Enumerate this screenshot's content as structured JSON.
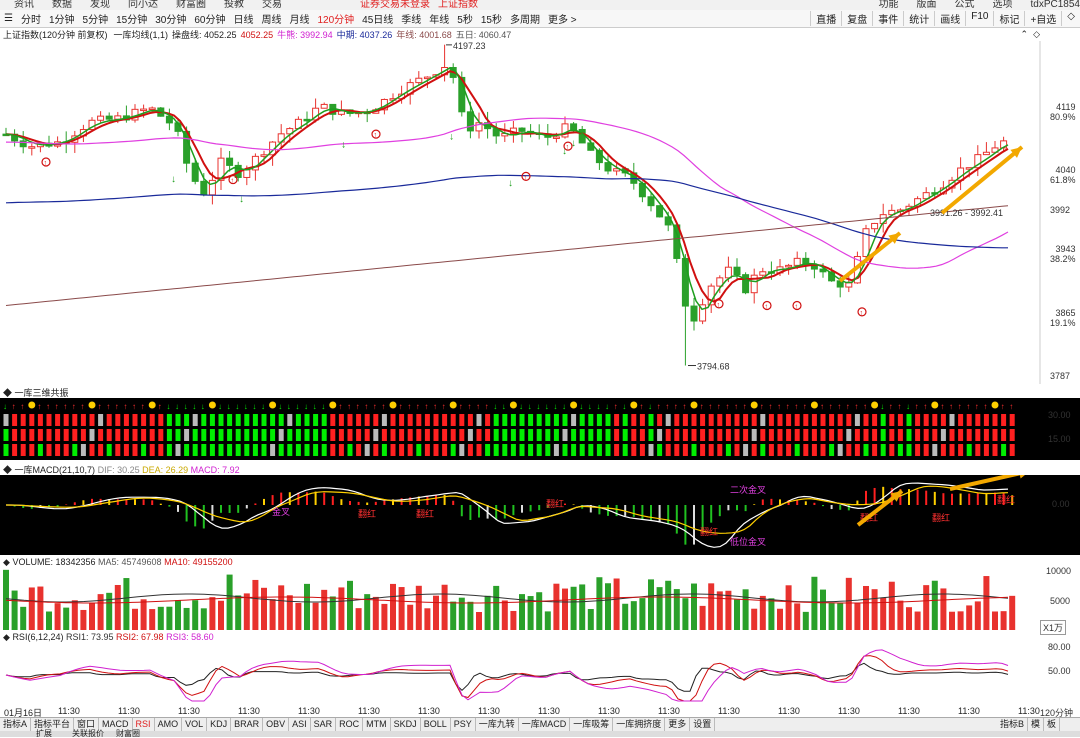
{
  "menu": [
    "资讯",
    "数据",
    "发现",
    "同小达",
    "财富圈",
    "投教",
    "交易"
  ],
  "menu_notice": [
    "证券交易未登录",
    "上证指数"
  ],
  "menu_right": [
    "功能",
    "版面",
    "公式",
    "选项"
  ],
  "account": "tdxPC1854",
  "periods": [
    {
      "label": "分时",
      "active": false
    },
    {
      "label": "1分钟",
      "active": false
    },
    {
      "label": "5分钟",
      "active": false
    },
    {
      "label": "15分钟",
      "active": false
    },
    {
      "label": "30分钟",
      "active": false
    },
    {
      "label": "60分钟",
      "active": false
    },
    {
      "label": "日线",
      "active": false
    },
    {
      "label": "周线",
      "active": false
    },
    {
      "label": "月线",
      "active": false
    },
    {
      "label": "120分钟",
      "active": true
    },
    {
      "label": "45日线",
      "active": false
    },
    {
      "label": "季线",
      "active": false
    },
    {
      "label": "年线",
      "active": false
    },
    {
      "label": "5秒",
      "active": false
    },
    {
      "label": "15秒",
      "active": false
    },
    {
      "label": "多周期",
      "active": false
    },
    {
      "label": "更多 >",
      "active": false
    }
  ],
  "right_buttons": [
    "直播",
    "复盘",
    "事件",
    "统计",
    "画线",
    "F10",
    "标记",
    "+自选",
    "◇"
  ],
  "info": {
    "title": "上证指数(120分钟 前复权)",
    "indicator": "一库均线(1,1)",
    "cpx": "操盘线: 4052.25",
    "short": "4052.25",
    "bull": "牛熊: 3992.94",
    "mid": "中期: 4037.26",
    "year": "年线: 4001.68",
    "five": "五日: 4060.47"
  },
  "price_axis": [
    {
      "v": "4119",
      "pct": "80.9%",
      "y": 107
    },
    {
      "v": "4040",
      "pct": "61.8%",
      "y": 170
    },
    {
      "v": "3992",
      "pct": "",
      "y": 210
    },
    {
      "v": "3943",
      "pct": "38.2%",
      "y": 249
    },
    {
      "v": "3865",
      "pct": "19.1%",
      "y": 313
    },
    {
      "v": "3787",
      "pct": "",
      "y": 376
    }
  ],
  "annotations": {
    "high": "4197.23",
    "low": "3794.68",
    "range": "3991.26 - 3992.41"
  },
  "p2": {
    "title": "一库三维共振",
    "ticks": [
      "30.00",
      "15.00"
    ]
  },
  "p3": {
    "title": "一库MACD(21,10,7)",
    "dif": "DIF: 30.25",
    "dea": "DEA: 26.29",
    "macd": "MACD: 7.92",
    "tick": "0.00",
    "labels": [
      "二次金叉",
      "翻红",
      "金叉",
      "翻红",
      "翻红",
      "翻红",
      "低位金叉",
      "翻红",
      "翻红",
      "翻红"
    ]
  },
  "p4": {
    "title": "VOLUME: 18342356",
    "ma5": "MA5: 45749608",
    "ma10": "MA10: 49155200",
    "ticks": [
      "10000",
      "5000"
    ],
    "unit": "X1万"
  },
  "p5": {
    "title": "RSI(6,12,24)",
    "r1": "RSI1: 73.95",
    "r2": "RSI2: 67.98",
    "r3": "RSI3: 58.60",
    "ticks": [
      "80.00",
      "50.00"
    ]
  },
  "time_axis": [
    "01月16日",
    "11:30",
    "11:30",
    "11:30",
    "11:30",
    "11:30",
    "11:30",
    "11:30",
    "11:30",
    "11:30",
    "11:30",
    "11:30",
    "11:30",
    "11:30",
    "11:30",
    "11:30",
    "11:30",
    "11:30"
  ],
  "tabs": [
    {
      "label": "指标A",
      "active": false
    },
    {
      "label": "指标平台",
      "active": false
    },
    {
      "label": "窗口",
      "active": false
    },
    {
      "label": "MACD",
      "active": false
    },
    {
      "label": "RSI",
      "active": true
    },
    {
      "label": "AMO",
      "active": false
    },
    {
      "label": "VOL",
      "active": false
    },
    {
      "label": "KDJ",
      "active": false
    },
    {
      "label": "BRAR",
      "active": false
    },
    {
      "label": "OBV",
      "active": false
    },
    {
      "label": "ASI",
      "active": false
    },
    {
      "label": "SAR",
      "active": false
    },
    {
      "label": "ROC",
      "active": false
    },
    {
      "label": "MTM",
      "active": false
    },
    {
      "label": "SKDJ",
      "active": false
    },
    {
      "label": "BOLL",
      "active": false
    },
    {
      "label": "PSY",
      "active": false
    },
    {
      "label": "一库九转",
      "active": false
    },
    {
      "label": "一库MACD",
      "active": false
    },
    {
      "label": "一库吸筹",
      "active": false
    },
    {
      "label": "一库拥挤度",
      "active": false
    },
    {
      "label": "更多",
      "active": false
    },
    {
      "label": "设置",
      "active": false
    }
  ],
  "tabs_right": [
    "指标B",
    "模",
    "板"
  ],
  "period_corner": "120分钟",
  "footer": [
    "扩展",
    "关联报价",
    "财富圈"
  ],
  "colors": {
    "up": "#e8322e",
    "down": "#2aa02a",
    "ma_red": "#d01010",
    "ma_green": "#1e9e1e",
    "magenta": "#e040e0",
    "navy": "#1a2a9a",
    "brown": "#8a4a4a",
    "arrow": "#f2a800"
  }
}
